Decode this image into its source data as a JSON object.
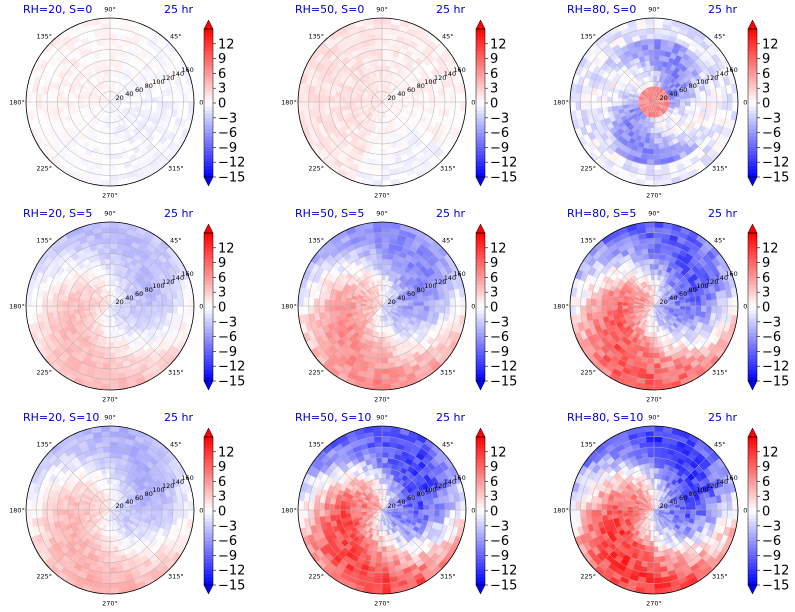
{
  "figure": {
    "time_label": "25 hr"
  },
  "colors": {
    "positive": "#ff0000",
    "negative": "#0000ff",
    "neutral": "#ffffff",
    "title": "#0000cc"
  },
  "chart_data": [
    {
      "type": "heatmap",
      "projection": "polar",
      "title": "RH=20, S=0",
      "time": "25 hr",
      "rh": 20,
      "s": 0,
      "radial_ticks": [
        20,
        40,
        60,
        80,
        100,
        120,
        140,
        160
      ],
      "angular_ticks": [
        "0°",
        "45°",
        "90°",
        "135°",
        "180°",
        "225°",
        "270°",
        "315°"
      ],
      "colorbar_ticks": [
        12,
        9,
        6,
        3,
        0,
        -3,
        -6,
        -9,
        -12,
        -15
      ],
      "vlim": [
        -15,
        15
      ],
      "colorbar_extend": "both",
      "colormap": "bwr",
      "amplitude": 0.35,
      "pattern": "weak"
    },
    {
      "type": "heatmap",
      "projection": "polar",
      "title": "RH=50, S=0",
      "time": "25 hr",
      "rh": 50,
      "s": 0,
      "radial_ticks": [
        20,
        40,
        60,
        80,
        100,
        120,
        140,
        160
      ],
      "angular_ticks": [
        "0°",
        "45°",
        "90°",
        "135°",
        "180°",
        "225°",
        "270°",
        "315°"
      ],
      "colorbar_ticks": [
        12,
        9,
        6,
        3,
        0,
        -3,
        -6,
        -9,
        -12,
        -15
      ],
      "vlim": [
        -15,
        15
      ],
      "colorbar_extend": "both",
      "colormap": "bwr",
      "amplitude": 0.4,
      "pattern": "weak-positive"
    },
    {
      "type": "heatmap",
      "projection": "polar",
      "title": "RH=80, S=0",
      "time": "25 hr",
      "rh": 80,
      "s": 0,
      "radial_ticks": [
        20,
        40,
        60,
        80,
        100,
        120,
        140,
        160
      ],
      "angular_ticks": [
        "0°",
        "45°",
        "90°",
        "135°",
        "180°",
        "225°",
        "270°",
        "315°"
      ],
      "colorbar_ticks": [
        12,
        9,
        6,
        3,
        0,
        -3,
        -6,
        -9,
        -12,
        -15
      ],
      "vlim": [
        -15,
        15
      ],
      "colorbar_extend": "both",
      "colormap": "bwr",
      "amplitude": 0.75,
      "pattern": "ring"
    },
    {
      "type": "heatmap",
      "projection": "polar",
      "title": "RH=20, S=5",
      "time": "25 hr",
      "rh": 20,
      "s": 5,
      "radial_ticks": [
        20,
        40,
        60,
        80,
        100,
        120,
        140,
        160
      ],
      "angular_ticks": [
        "0°",
        "45°",
        "90°",
        "135°",
        "180°",
        "225°",
        "270°",
        "315°"
      ],
      "colorbar_ticks": [
        12,
        9,
        6,
        3,
        0,
        -3,
        -6,
        -9,
        -12,
        -15
      ],
      "vlim": [
        -15,
        15
      ],
      "colorbar_extend": "both",
      "colormap": "bwr",
      "amplitude": 0.35,
      "pattern": "dipole"
    },
    {
      "type": "heatmap",
      "projection": "polar",
      "title": "RH=50, S=5",
      "time": "25 hr",
      "rh": 50,
      "s": 5,
      "radial_ticks": [
        20,
        40,
        60,
        80,
        100,
        120,
        140,
        160
      ],
      "angular_ticks": [
        "0°",
        "45°",
        "90°",
        "135°",
        "180°",
        "225°",
        "270°",
        "315°"
      ],
      "colorbar_ticks": [
        12,
        9,
        6,
        3,
        0,
        -3,
        -6,
        -9,
        -12,
        -15
      ],
      "vlim": [
        -15,
        15
      ],
      "colorbar_extend": "both",
      "colormap": "bwr",
      "amplitude": 0.6,
      "pattern": "dipole"
    },
    {
      "type": "heatmap",
      "projection": "polar",
      "title": "RH=80, S=5",
      "time": "25 hr",
      "rh": 80,
      "s": 5,
      "radial_ticks": [
        20,
        40,
        60,
        80,
        100,
        120,
        140,
        160
      ],
      "angular_ticks": [
        "0°",
        "45°",
        "90°",
        "135°",
        "180°",
        "225°",
        "270°",
        "315°"
      ],
      "colorbar_ticks": [
        12,
        9,
        6,
        3,
        0,
        -3,
        -6,
        -9,
        -12,
        -15
      ],
      "vlim": [
        -15,
        15
      ],
      "colorbar_extend": "both",
      "colormap": "bwr",
      "amplitude": 0.85,
      "pattern": "dipole"
    },
    {
      "type": "heatmap",
      "projection": "polar",
      "title": "RH=20, S=10",
      "time": "25 hr",
      "rh": 20,
      "s": 10,
      "radial_ticks": [
        20,
        40,
        60,
        80,
        100,
        120,
        140,
        160
      ],
      "angular_ticks": [
        "0°",
        "45°",
        "90°",
        "135°",
        "180°",
        "225°",
        "270°",
        "315°"
      ],
      "colorbar_ticks": [
        12,
        9,
        6,
        3,
        0,
        -3,
        -6,
        -9,
        -12,
        -15
      ],
      "vlim": [
        -15,
        15
      ],
      "colorbar_extend": "both",
      "colormap": "bwr",
      "amplitude": 0.4,
      "pattern": "dipole"
    },
    {
      "type": "heatmap",
      "projection": "polar",
      "title": "RH=50, S=10",
      "time": "25 hr",
      "rh": 50,
      "s": 10,
      "radial_ticks": [
        20,
        40,
        60,
        80,
        100,
        120,
        140,
        160
      ],
      "angular_ticks": [
        "0°",
        "45°",
        "90°",
        "135°",
        "180°",
        "225°",
        "270°",
        "315°"
      ],
      "colorbar_ticks": [
        12,
        9,
        6,
        3,
        0,
        -3,
        -6,
        -9,
        -12,
        -15
      ],
      "vlim": [
        -15,
        15
      ],
      "colorbar_extend": "both",
      "colormap": "bwr",
      "amplitude": 0.95,
      "pattern": "dipole"
    },
    {
      "type": "heatmap",
      "projection": "polar",
      "title": "RH=80, S=10",
      "time": "25 hr",
      "rh": 80,
      "s": 10,
      "radial_ticks": [
        20,
        40,
        60,
        80,
        100,
        120,
        140,
        160
      ],
      "angular_ticks": [
        "0°",
        "45°",
        "90°",
        "135°",
        "180°",
        "225°",
        "270°",
        "315°"
      ],
      "colorbar_ticks": [
        12,
        9,
        6,
        3,
        0,
        -3,
        -6,
        -9,
        -12,
        -15
      ],
      "vlim": [
        -15,
        15
      ],
      "colorbar_extend": "both",
      "colormap": "bwr",
      "amplitude": 1.0,
      "pattern": "dipole"
    }
  ]
}
